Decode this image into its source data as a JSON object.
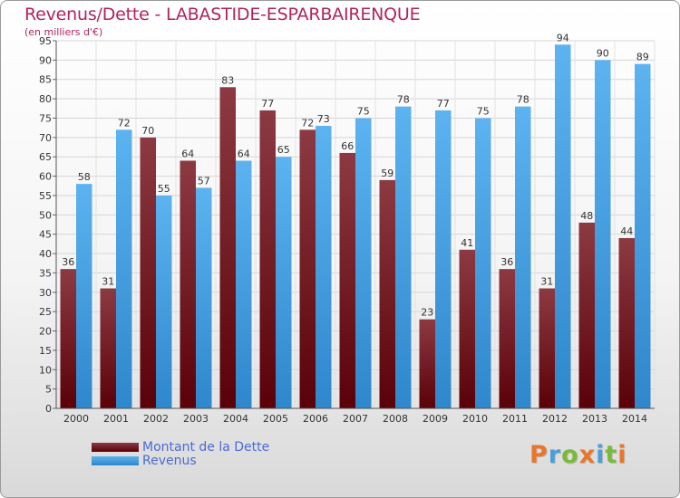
{
  "header": {
    "title": "Revenus/Dette - LABASTIDE-ESPARBAIRENQUE",
    "subtitle": "(en milliers d'€)"
  },
  "legend": {
    "items": [
      {
        "label": "Montant de la Dette",
        "color": "#6b0f1a"
      },
      {
        "label": "Revenus",
        "color": "#4aa3e6"
      }
    ]
  },
  "logo": {
    "letters": [
      "P",
      "r",
      "o",
      "x",
      "i",
      "t",
      "i"
    ],
    "colors": [
      "#e8762b",
      "#4a9fd8",
      "#7bb93a",
      "#e8762b",
      "#4a9fd8",
      "#7bb93a",
      "#e8762b"
    ]
  },
  "chart_data": {
    "type": "bar",
    "categories": [
      "2000",
      "2001",
      "2002",
      "2003",
      "2004",
      "2005",
      "2006",
      "2007",
      "2008",
      "2009",
      "2010",
      "2011",
      "2012",
      "2013",
      "2014"
    ],
    "series": [
      {
        "name": "Montant de la Dette",
        "color": "#6b0f1a",
        "values": [
          36,
          31,
          70,
          64,
          83,
          77,
          72,
          66,
          59,
          23,
          41,
          36,
          31,
          48,
          44
        ]
      },
      {
        "name": "Revenus",
        "color": "#4aa3e6",
        "values": [
          58,
          72,
          55,
          57,
          64,
          65,
          73,
          75,
          78,
          77,
          75,
          78,
          94,
          90,
          89
        ]
      }
    ],
    "ylim": [
      0,
      95
    ],
    "yticks": [
      0,
      5,
      10,
      15,
      20,
      25,
      30,
      35,
      40,
      45,
      50,
      55,
      60,
      65,
      70,
      75,
      80,
      85,
      90,
      95
    ],
    "grid": true,
    "legend_position": "bottom-left"
  }
}
